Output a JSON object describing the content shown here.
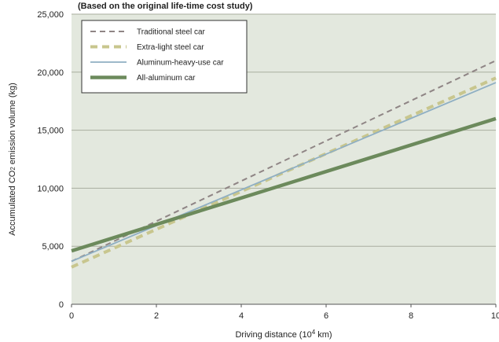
{
  "chart_data": {
    "type": "line",
    "title": "(Based on the original life-time cost study)",
    "xlabel_main": "Driving distance (10",
    "xlabel_sup": "4",
    "xlabel_tail": " km)",
    "ylabel_main": "Accumulated CO",
    "ylabel_sub": "2",
    "ylabel_tail": " emission volume (kg)",
    "xlim": [
      0,
      10
    ],
    "ylim": [
      0,
      25000
    ],
    "x_ticks": [
      0,
      2,
      4,
      6,
      8,
      10
    ],
    "x_tick_labels": [
      "0",
      "2",
      "4",
      "6",
      "8",
      "10"
    ],
    "y_ticks": [
      0,
      5000,
      10000,
      15000,
      20000,
      25000
    ],
    "y_tick_labels": [
      "0",
      "5,000",
      "10,000",
      "15,000",
      "20,000",
      "25,000"
    ],
    "grid": "horizontal",
    "legend_position": "top-left",
    "plot_background": "#e3e8de",
    "series": [
      {
        "name": "Traditional steel car",
        "x": [
          0,
          10
        ],
        "values": [
          3700,
          21000
        ],
        "color": "#8f8585",
        "style": "dashed"
      },
      {
        "name": "Extra-light steel car",
        "x": [
          0,
          10
        ],
        "values": [
          3200,
          19500
        ],
        "color": "#c8c68e",
        "style": "thick-dashed"
      },
      {
        "name": "Aluminum-heavy-use car",
        "x": [
          0,
          10
        ],
        "values": [
          3700,
          19100
        ],
        "color": "#8fafc3",
        "style": "solid"
      },
      {
        "name": "All-aluminum car",
        "x": [
          0,
          10
        ],
        "values": [
          4600,
          16000
        ],
        "color": "#6c8a5c",
        "style": "thick-solid"
      }
    ]
  }
}
